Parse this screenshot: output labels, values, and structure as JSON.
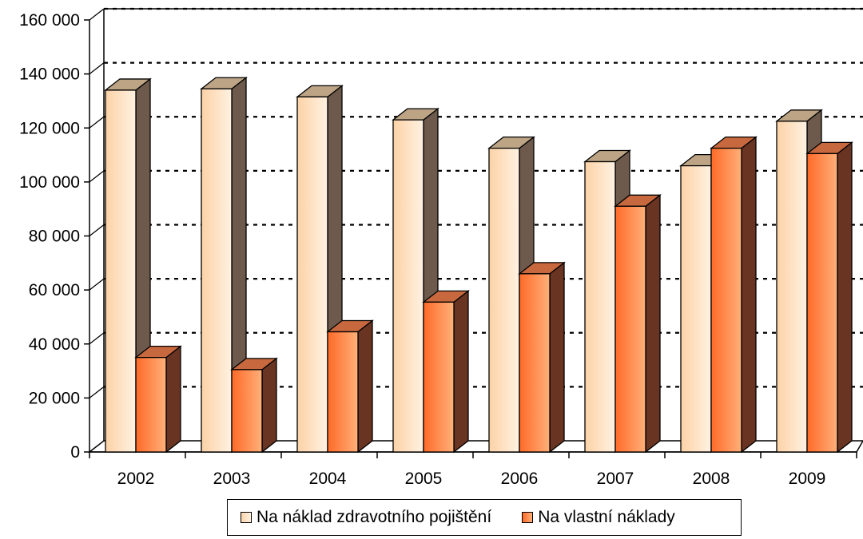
{
  "chart_data": {
    "type": "bar",
    "categories": [
      "2002",
      "2003",
      "2004",
      "2005",
      "2006",
      "2007",
      "2008",
      "2009"
    ],
    "series": [
      {
        "name": "Na náklad zdravotního pojištění",
        "values": [
          134000,
          134500,
          131500,
          123000,
          112500,
          107500,
          106000,
          122500
        ]
      },
      {
        "name": "Na vlastní náklady",
        "values": [
          35000,
          30500,
          44500,
          55500,
          66000,
          91000,
          112500,
          110500
        ]
      }
    ],
    "ylim": [
      0,
      160000
    ],
    "yticks": [
      0,
      20000,
      40000,
      60000,
      80000,
      100000,
      120000,
      140000,
      160000
    ],
    "ytick_labels": [
      "0",
      "20 000",
      "40 000",
      "60 000",
      "80 000",
      "100 000",
      "120 000",
      "140 000",
      "160 000"
    ],
    "grid": true,
    "legend_position": "bottom",
    "colors": {
      "series1_front": "#fcd4ac",
      "series1_top": "#bca485",
      "series1_side": "#6e5a4c",
      "series2_front": "#ff7a3a",
      "series2_top": "#c8683e",
      "series2_side": "#6a3422"
    }
  },
  "legend": {
    "items": [
      {
        "label": "Na náklad zdravotního pojištění"
      },
      {
        "label": "Na vlastní náklady"
      }
    ]
  }
}
